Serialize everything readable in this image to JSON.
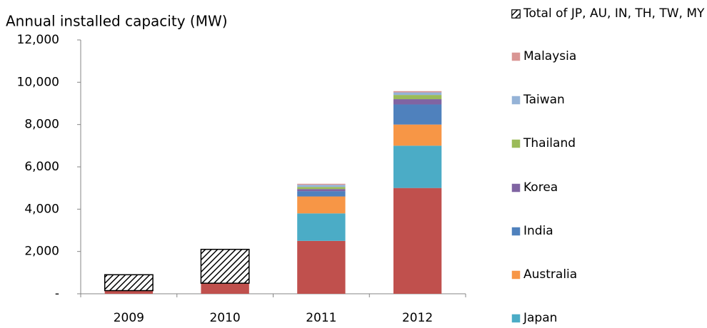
{
  "chart_data": {
    "type": "bar",
    "stacked": true,
    "title": "Annual installed capacity  (MW)",
    "categories": [
      "2009",
      "2010",
      "2011",
      "2012"
    ],
    "series": [
      {
        "color": "#c0504d",
        "values": [
          150,
          500,
          2500,
          5000
        ]
      },
      {
        "name": "Japan",
        "color": "#4bacc6",
        "values": [
          null,
          null,
          1300,
          2000
        ]
      },
      {
        "name": "Australia",
        "color": "#f79646",
        "values": [
          null,
          null,
          800,
          1000
        ]
      },
      {
        "name": "India",
        "color": "#4f81bd",
        "values": [
          null,
          null,
          250,
          950
        ]
      },
      {
        "name": "Korea",
        "color": "#8064a2",
        "values": [
          null,
          null,
          100,
          250
        ]
      },
      {
        "name": "Thailand",
        "color": "#9bbb59",
        "values": [
          null,
          null,
          100,
          200
        ]
      },
      {
        "name": "Taiwan",
        "color": "#95b3d7",
        "values": [
          null,
          null,
          100,
          120
        ]
      },
      {
        "name": "Malaysia",
        "color": "#d99694",
        "values": [
          null,
          null,
          50,
          60
        ]
      },
      {
        "name": "Total of JP, AU, IN, TH, TW, MY",
        "color": "#000000",
        "hatch": true,
        "values": [
          750,
          1600,
          null,
          null
        ]
      }
    ],
    "ylim": [
      0,
      12000
    ],
    "yticks": [
      {
        "value": 0,
        "label": "-"
      },
      {
        "value": 2000,
        "label": "2,000"
      },
      {
        "value": 4000,
        "label": "4,000"
      },
      {
        "value": 6000,
        "label": "6,000"
      },
      {
        "value": 8000,
        "label": "8,000"
      },
      {
        "value": 10000,
        "label": "10,000"
      },
      {
        "value": 12000,
        "label": "12,000"
      }
    ],
    "grid": false
  }
}
